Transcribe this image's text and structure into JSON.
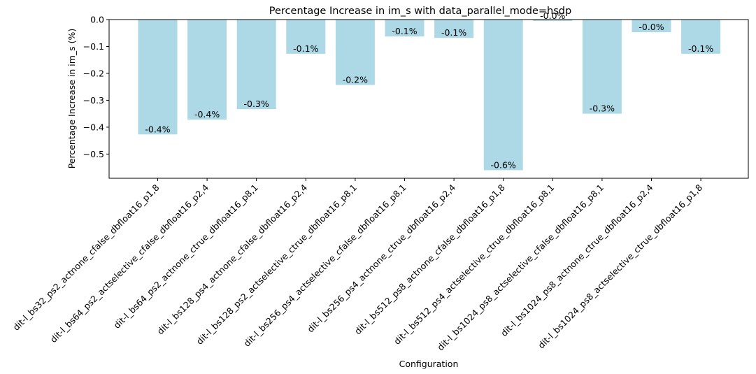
{
  "chart_data": {
    "type": "bar",
    "title": "Percentage Increase in im_s with data_parallel_mode=hsdp",
    "xlabel": "Configuration",
    "ylabel": "Percentage Increase in im_s (%)",
    "ylim": [
      -0.59,
      0.0
    ],
    "yticks": [
      0.0,
      -0.1,
      -0.2,
      -0.3,
      -0.4,
      -0.5
    ],
    "ytick_labels": [
      "0.0",
      "−0.1",
      "−0.2",
      "−0.3",
      "−0.4",
      "−0.5"
    ],
    "grid": false,
    "bar_color": "#add8e6",
    "categories": [
      "dit-l_bs32_ps2_actnone_cfalse_dbfloat16_p1,8",
      "dit-l_bs64_ps2_actselective_cfalse_dbfloat16_p2,4",
      "dit-l_bs64_ps2_actnone_ctrue_dbfloat16_p8,1",
      "dit-l_bs128_ps4_actnone_cfalse_dbfloat16_p2,4",
      "dit-l_bs128_ps2_actselective_ctrue_dbfloat16_p8,1",
      "dit-l_bs256_ps4_actselective_cfalse_dbfloat16_p8,1",
      "dit-l_bs256_ps4_actnone_ctrue_dbfloat16_p2,4",
      "dit-l_bs512_ps8_actnone_cfalse_dbfloat16_p1,8",
      "dit-l_bs512_ps4_actselective_ctrue_dbfloat16_p8,1",
      "dit-l_bs1024_ps8_actselective_cfalse_dbfloat16_p8,1",
      "dit-l_bs1024_ps8_actnone_ctrue_dbfloat16_p2,4",
      "dit-l_bs1024_ps8_actselective_ctrue_dbfloat16_p1,8"
    ],
    "values": [
      -0.427,
      -0.372,
      -0.333,
      -0.127,
      -0.243,
      -0.063,
      -0.068,
      -0.56,
      -0.005,
      -0.35,
      -0.047,
      -0.127
    ],
    "labels": [
      "-0.4%",
      "-0.4%",
      "-0.3%",
      "-0.1%",
      "-0.2%",
      "-0.1%",
      "-0.1%",
      "-0.6%",
      "-0.0%",
      "-0.3%",
      "-0.0%",
      "-0.1%"
    ]
  }
}
